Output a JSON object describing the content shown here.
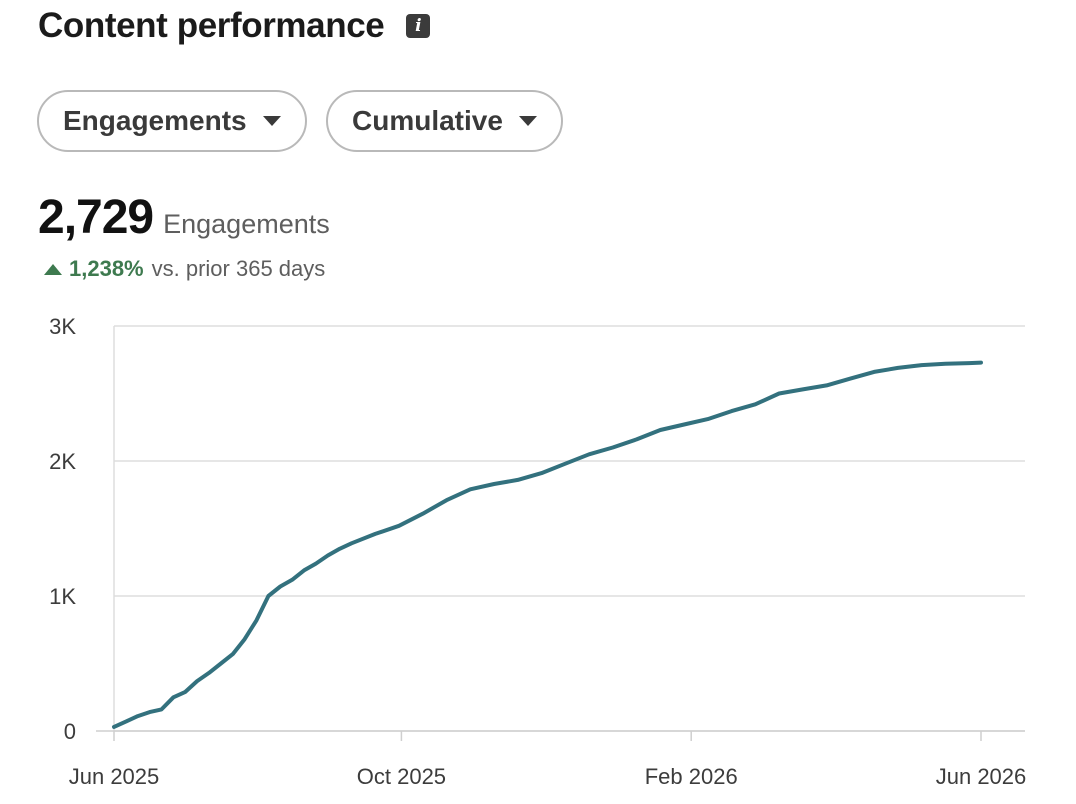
{
  "header": {
    "title": "Content performance",
    "info_icon": "info-icon"
  },
  "filters": [
    {
      "label": "Engagements",
      "icon": "caret-down-icon"
    },
    {
      "label": "Cumulative",
      "icon": "caret-down-icon"
    }
  ],
  "kpi": {
    "value": "2,729",
    "label": "Engagements",
    "delta_pct": "1,238%",
    "delta_text": "vs. prior 365 days",
    "delta_direction": "up",
    "delta_color": "#3e7a4f"
  },
  "chart_data": {
    "type": "line",
    "title": "",
    "xlabel": "",
    "ylabel": "",
    "ylim": [
      0,
      3000
    ],
    "y_ticks": [
      0,
      1000,
      2000,
      3000
    ],
    "y_tick_labels": [
      "0",
      "1K",
      "2K",
      "3K"
    ],
    "x_tick_labels": [
      "Jun 2025",
      "Oct 2025",
      "Feb 2026",
      "Jun 2026"
    ],
    "x_range_days": [
      0,
      365
    ],
    "x_tick_days": [
      0,
      121,
      243,
      365
    ],
    "line_color": "#33717e",
    "grid": true,
    "series": [
      {
        "x": [
          0,
          5,
          10,
          15,
          20,
          25,
          30,
          35,
          40,
          45,
          50,
          55,
          60,
          65,
          70,
          75,
          80,
          85,
          90,
          95,
          100,
          110,
          120,
          130,
          140,
          150,
          160,
          170,
          180,
          190,
          200,
          210,
          220,
          230,
          240,
          250,
          260,
          270,
          280,
          290,
          300,
          310,
          320,
          330,
          340,
          350,
          360,
          365
        ],
        "y": [
          30,
          70,
          110,
          140,
          160,
          250,
          290,
          370,
          430,
          500,
          570,
          680,
          820,
          1000,
          1070,
          1120,
          1190,
          1240,
          1300,
          1350,
          1390,
          1460,
          1520,
          1610,
          1710,
          1790,
          1830,
          1860,
          1910,
          1980,
          2050,
          2100,
          2160,
          2230,
          2270,
          2310,
          2370,
          2420,
          2500,
          2530,
          2560,
          2610,
          2660,
          2690,
          2710,
          2720,
          2725,
          2729
        ]
      }
    ]
  }
}
